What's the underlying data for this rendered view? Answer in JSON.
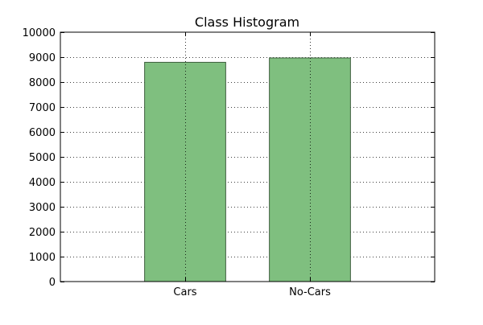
{
  "chart_data": {
    "type": "bar",
    "title": "Class Histogram",
    "xlabel": "",
    "ylabel": "",
    "categories": [
      "Cars",
      "No-Cars"
    ],
    "values": [
      8792,
      8968
    ],
    "ylim": [
      0,
      10000
    ],
    "yticks": [
      0,
      1000,
      2000,
      3000,
      4000,
      5000,
      6000,
      7000,
      8000,
      9000,
      10000
    ],
    "grid": true,
    "legend": "none"
  },
  "colors": {
    "bar_fill": "#7fbf7f",
    "bar_edge": "#3f5f3f",
    "axis": "#000000",
    "grid": "#000000",
    "background": "#ffffff"
  }
}
